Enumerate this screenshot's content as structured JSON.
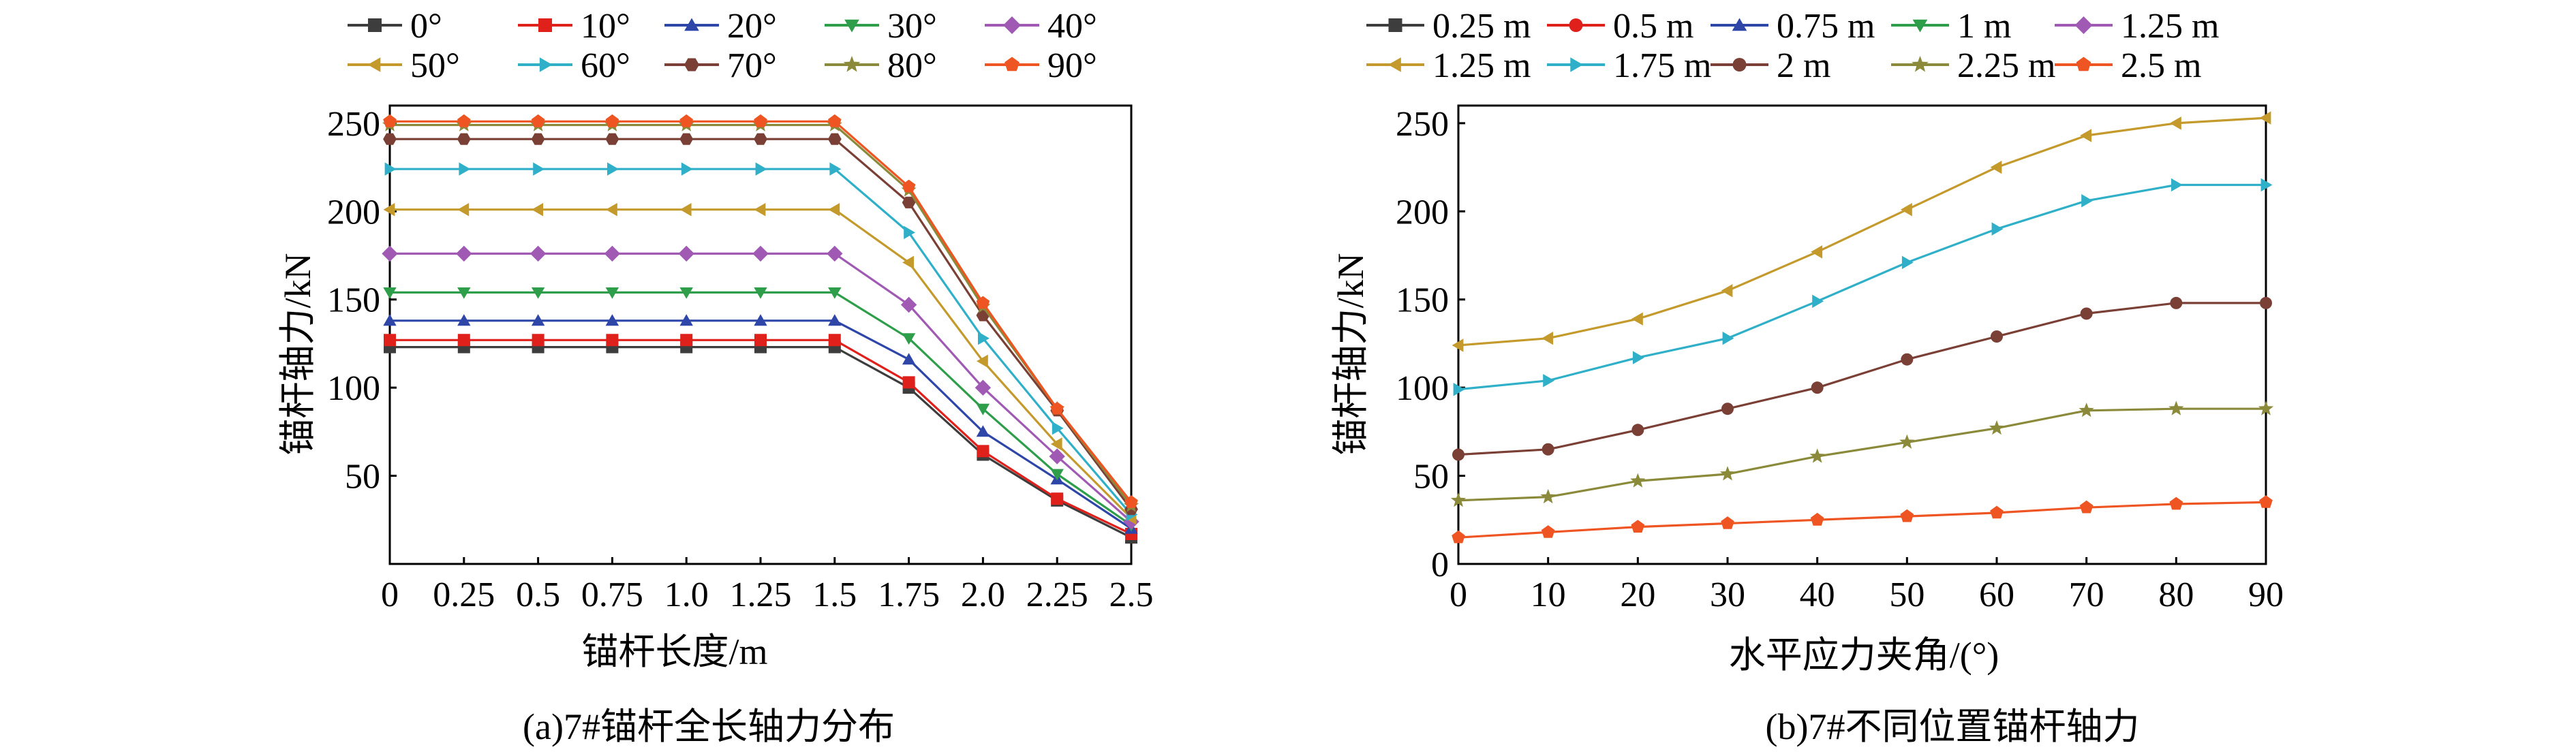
{
  "chart_data": [
    {
      "type": "line",
      "caption": "(a)7#锚杆全长轴力分布",
      "xlabel": "锚杆长度/m",
      "ylabel": "锚杆轴力/kN",
      "x": [
        0,
        0.25,
        0.5,
        0.75,
        1.0,
        1.25,
        1.5,
        1.75,
        2.0,
        2.25,
        2.5
      ],
      "xticks": [
        "0",
        "0.25",
        "0.5",
        "0.75",
        "1.0",
        "1.25",
        "1.5",
        "1.75",
        "2.0",
        "2.25",
        "2.5"
      ],
      "yticks": [
        "50",
        "100",
        "150",
        "200",
        "250"
      ],
      "xlim": [
        0,
        2.5
      ],
      "ylim": [
        0,
        260
      ],
      "legend_position": "top",
      "series": [
        {
          "name": "0°",
          "color": "#3d3d3d",
          "marker": "square",
          "values": [
            123,
            123,
            123,
            123,
            123,
            123,
            123,
            100,
            62,
            36,
            15
          ]
        },
        {
          "name": "10°",
          "color": "#e0201b",
          "marker": "square",
          "values": [
            127,
            127,
            127,
            127,
            127,
            127,
            127,
            103,
            64,
            37,
            17
          ]
        },
        {
          "name": "20°",
          "color": "#2d46a8",
          "marker": "triangle",
          "values": [
            138,
            138,
            138,
            138,
            138,
            138,
            138,
            116,
            75,
            48,
            20
          ]
        },
        {
          "name": "30°",
          "color": "#2e9e4a",
          "marker": "tri-down",
          "values": [
            154,
            154,
            154,
            154,
            154,
            154,
            154,
            128,
            88,
            51,
            22
          ]
        },
        {
          "name": "40°",
          "color": "#a05ab4",
          "marker": "diamond",
          "values": [
            176,
            176,
            176,
            176,
            176,
            176,
            176,
            147,
            100,
            61,
            24
          ]
        },
        {
          "name": "50°",
          "color": "#c49a2c",
          "marker": "tri-left",
          "values": [
            201,
            201,
            201,
            201,
            201,
            201,
            201,
            171,
            115,
            68,
            26
          ]
        },
        {
          "name": "60°",
          "color": "#2fb0c8",
          "marker": "tri-right",
          "values": [
            224,
            224,
            224,
            224,
            224,
            224,
            224,
            188,
            128,
            77,
            28
          ]
        },
        {
          "name": "70°",
          "color": "#7a3f35",
          "marker": "hexagon",
          "values": [
            241,
            241,
            241,
            241,
            241,
            241,
            241,
            205,
            141,
            87,
            31
          ]
        },
        {
          "name": "80°",
          "color": "#8b8a3a",
          "marker": "star",
          "values": [
            249,
            249,
            249,
            249,
            249,
            249,
            249,
            212,
            146,
            88,
            33
          ]
        },
        {
          "name": "90°",
          "color": "#ee5522",
          "marker": "pentagon",
          "values": [
            251,
            251,
            251,
            251,
            251,
            251,
            251,
            214,
            148,
            88,
            35
          ]
        }
      ]
    },
    {
      "type": "line",
      "caption": "(b)7#不同位置锚杆轴力",
      "xlabel": "水平应力夹角/(°)",
      "ylabel": "锚杆轴力/kN",
      "x": [
        0,
        10,
        20,
        30,
        40,
        50,
        60,
        70,
        80,
        90
      ],
      "xticks": [
        "0",
        "10",
        "20",
        "30",
        "40",
        "50",
        "60",
        "70",
        "80",
        "90"
      ],
      "yticks": [
        "0",
        "50",
        "100",
        "150",
        "200",
        "250"
      ],
      "xlim": [
        0,
        90
      ],
      "ylim": [
        0,
        260
      ],
      "legend_position": "top",
      "series": [
        {
          "name": "0.25 m",
          "color": "#3d3d3d",
          "marker": "square",
          "values": null
        },
        {
          "name": "0.5 m",
          "color": "#e0201b",
          "marker": "circle",
          "values": null
        },
        {
          "name": "0.75 m",
          "color": "#2d46a8",
          "marker": "triangle",
          "values": null
        },
        {
          "name": "1 m",
          "color": "#2e9e4a",
          "marker": "tri-down",
          "values": null
        },
        {
          "name": "1.25 m",
          "color": "#a05ab4",
          "marker": "diamond",
          "values": null
        },
        {
          "name": "1.25 m",
          "color": "#c49a2c",
          "marker": "tri-left",
          "values": [
            124,
            128,
            139,
            155,
            177,
            201,
            225,
            243,
            250,
            253
          ]
        },
        {
          "name": "1.75 m",
          "color": "#2fb0c8",
          "marker": "tri-right",
          "values": [
            99,
            104,
            117,
            128,
            149,
            171,
            190,
            206,
            215,
            215
          ]
        },
        {
          "name": "2 m",
          "color": "#7a3f35",
          "marker": "circle",
          "values": [
            62,
            65,
            76,
            88,
            100,
            116,
            129,
            142,
            148,
            148
          ]
        },
        {
          "name": "2.25 m",
          "color": "#8b8a3a",
          "marker": "star",
          "values": [
            36,
            38,
            47,
            51,
            61,
            69,
            77,
            87,
            88,
            88
          ]
        },
        {
          "name": "2.5 m",
          "color": "#ee5522",
          "marker": "pentagon",
          "values": [
            15,
            18,
            21,
            23,
            25,
            27,
            29,
            32,
            34,
            35
          ]
        }
      ]
    }
  ]
}
